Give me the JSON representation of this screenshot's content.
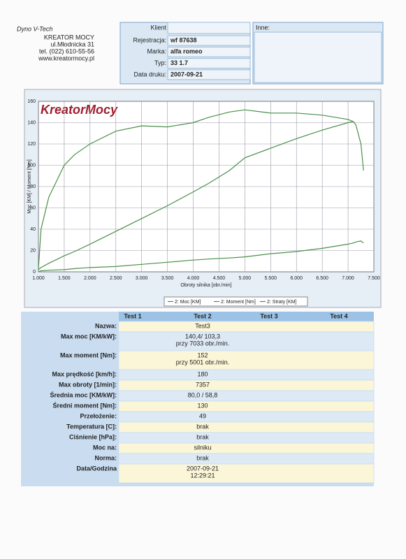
{
  "company": {
    "brand": "Dyno V-Tech",
    "name": "KREATOR  MOCY",
    "street": "ul.Młodnicka 31",
    "phone": "tel. (022) 610-55-56",
    "web": "www.kreatormocy.pl"
  },
  "client": {
    "title": "Klient",
    "fields": [
      {
        "label": "Rejestracja:",
        "value": "wf 87638"
      },
      {
        "label": "Marka:",
        "value": "alfa romeo"
      },
      {
        "label": "Typ:",
        "value": "33 1.7"
      },
      {
        "label": "Data druku:",
        "value": "2007-09-21"
      }
    ]
  },
  "notes": {
    "label": "Inne:"
  },
  "logo": "KreatorMocy",
  "chart_data": {
    "type": "line",
    "xlabel": "Obroty silnika [obr./min]",
    "ylabel": "Moc [KM] / Moment [Nm]",
    "x": [
      1000,
      1050,
      1200,
      1500,
      1700,
      2000,
      2500,
      3000,
      3500,
      4000,
      4300,
      4700,
      5000,
      5500,
      6000,
      6500,
      7000,
      7100,
      7150,
      7250,
      7300
    ],
    "series": [
      {
        "name": "2: Moc [KM]",
        "color": "#4a8f4a",
        "values": [
          2,
          4,
          8,
          15,
          19,
          26,
          38,
          50,
          62,
          75,
          83,
          95,
          107,
          116,
          125,
          133,
          140,
          141,
          null,
          null,
          null
        ]
      },
      {
        "name": "2: Moment [Nm]",
        "color": "#4a8f4a",
        "values": [
          3,
          40,
          70,
          100,
          110,
          120,
          132,
          137,
          136,
          140,
          145,
          150,
          152,
          149,
          149,
          147,
          143,
          141,
          138,
          120,
          95
        ]
      },
      {
        "name": "2: Straty [KM]",
        "color": "#4a8f4a",
        "values": [
          0,
          1,
          1.5,
          2,
          3,
          4,
          5,
          7,
          9,
          11,
          12,
          13,
          14,
          17,
          19,
          22,
          26,
          27,
          28,
          29,
          27
        ]
      }
    ],
    "xlim": [
      1000,
      7500
    ],
    "ylim": [
      0,
      160
    ],
    "xticks": [
      {
        "value": 1000,
        "label": "1.000"
      },
      {
        "value": 1500,
        "label": "1.500"
      },
      {
        "value": 2000,
        "label": "2.000"
      },
      {
        "value": 2500,
        "label": "2.500"
      },
      {
        "value": 3000,
        "label": "3.000"
      },
      {
        "value": 3500,
        "label": "3.500"
      },
      {
        "value": 4000,
        "label": "4.000"
      },
      {
        "value": 4500,
        "label": "4.500"
      },
      {
        "value": 5000,
        "label": "5.000"
      },
      {
        "value": 5500,
        "label": "5.500"
      },
      {
        "value": 6000,
        "label": "6.000"
      },
      {
        "value": 6500,
        "label": "6.500"
      },
      {
        "value": 7000,
        "label": "7.000"
      },
      {
        "value": 7500,
        "label": "7.500"
      }
    ],
    "yticks": [
      0,
      20,
      40,
      60,
      80,
      100,
      120,
      140,
      160
    ],
    "grid": true
  },
  "table": {
    "columns": [
      "Test 1",
      "Test 2",
      "Test 3",
      "Test 4"
    ],
    "rows": [
      {
        "label": "Nazwa:",
        "values": [
          "Test3"
        ]
      },
      {
        "label": "Max moc [KM/kW]:",
        "values": [
          "140,4/ 103,3",
          "przy 7033 obr./min."
        ]
      },
      {
        "label": "Max moment [Nm]:",
        "values": [
          "152",
          "przy 5001 obr./min."
        ]
      },
      {
        "label": "Max prędkość [km/h]:",
        "values": [
          "180"
        ]
      },
      {
        "label": "Max obroty [1/min]:",
        "values": [
          "7357"
        ]
      },
      {
        "label": "Średnia moc [KM/kW]:",
        "values": [
          "80,0 / 58,8"
        ]
      },
      {
        "label": "Średni moment [Nm]:",
        "values": [
          "130"
        ]
      },
      {
        "label": "Przełożenie:",
        "values": [
          "49"
        ]
      },
      {
        "label": "Temperatura [C]:",
        "values": [
          "brak"
        ]
      },
      {
        "label": "Ciśnienie [hPa]:",
        "values": [
          "brak"
        ]
      },
      {
        "label": "Moc na:",
        "values": [
          "silniku"
        ]
      },
      {
        "label": "Norma:",
        "values": [
          "brak"
        ]
      },
      {
        "label": "Data/Godzina",
        "values": [
          "2007-09-21",
          "12:29:21"
        ]
      }
    ]
  }
}
